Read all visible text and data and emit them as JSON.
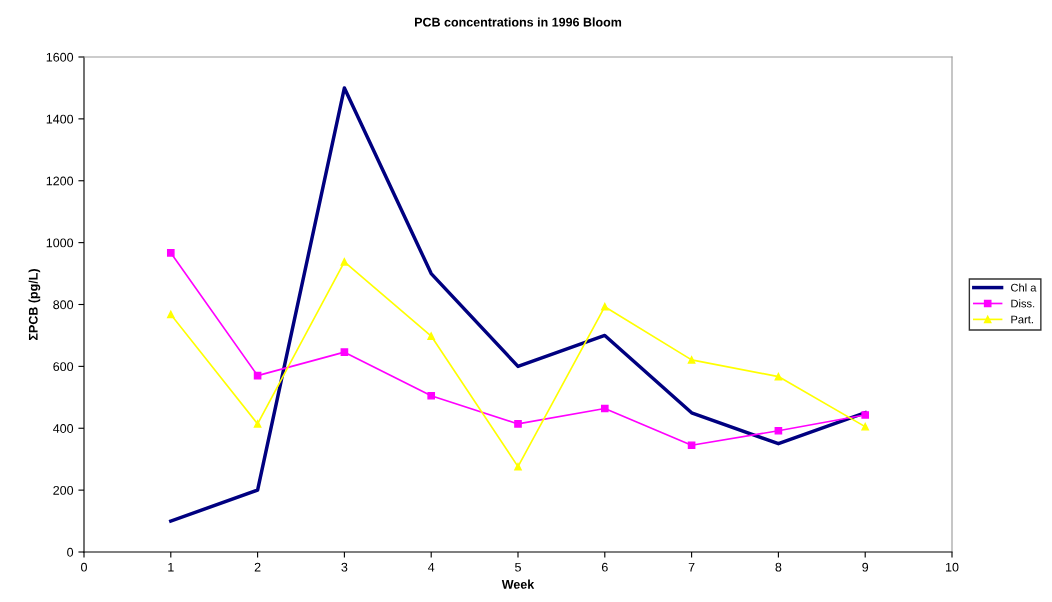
{
  "chart_data": {
    "type": "line",
    "title": "PCB concentrations in 1996 Bloom",
    "xlabel": "Week",
    "ylabel": "ΣPCB (pg/L)",
    "x": [
      1,
      2,
      3,
      4,
      5,
      6,
      7,
      8,
      9
    ],
    "series": [
      {
        "name": "Chl a",
        "color": "#000080",
        "marker": "none",
        "values": [
          100,
          200,
          1500,
          900,
          600,
          700,
          450,
          350,
          450
        ]
      },
      {
        "name": "Diss.",
        "color": "#ff00ff",
        "marker": "square",
        "values": [
          967,
          570,
          646,
          505,
          414,
          464,
          345,
          392,
          443
        ]
      },
      {
        "name": "Part.",
        "color": "#ffff00",
        "marker": "triangle",
        "values": [
          768,
          414,
          938,
          698,
          276,
          793,
          621,
          567,
          405
        ]
      }
    ],
    "xlim": [
      0,
      10
    ],
    "xticks": [
      0,
      1,
      2,
      3,
      4,
      5,
      6,
      7,
      8,
      9,
      10
    ],
    "ylim": [
      0,
      1600
    ],
    "yticks": [
      0,
      200,
      400,
      600,
      800,
      1000,
      1200,
      1400,
      1600
    ],
    "grid": false,
    "legend": "right",
    "line_style": "solid"
  }
}
